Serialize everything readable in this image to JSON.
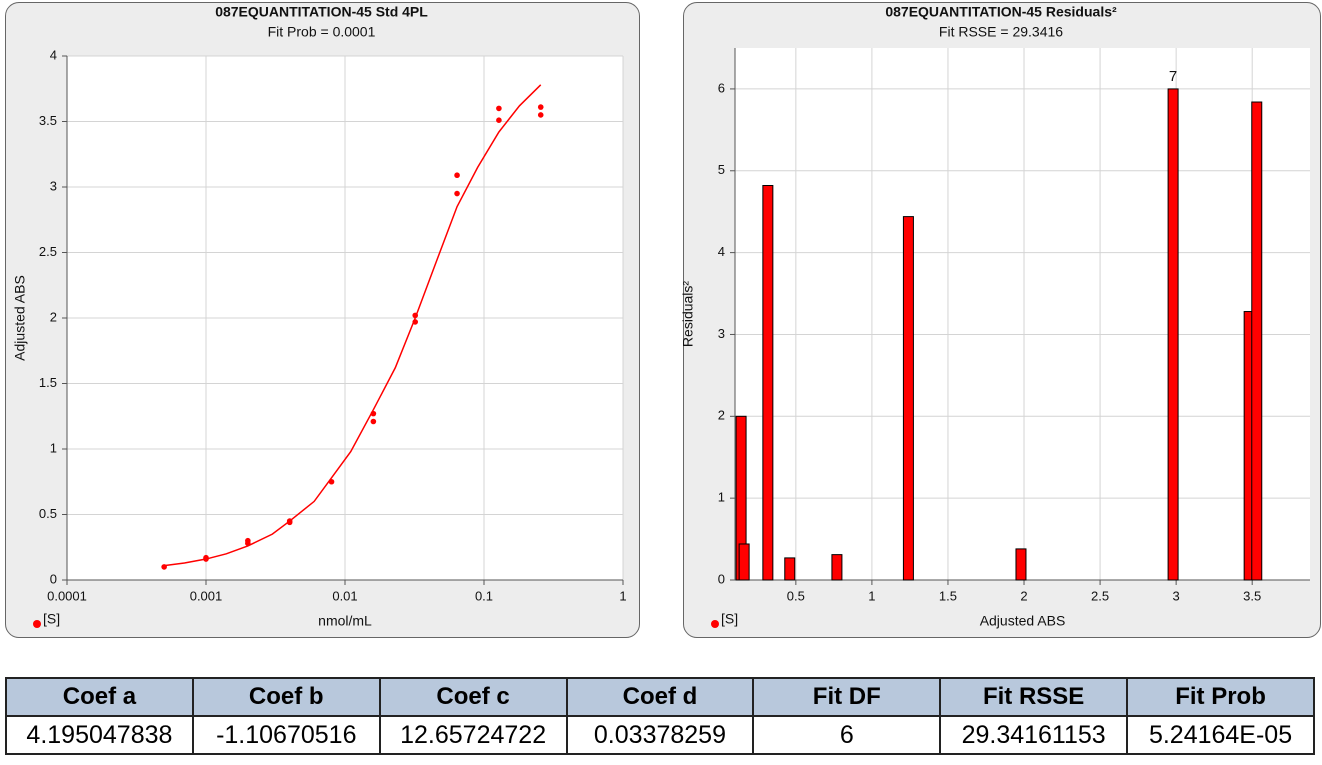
{
  "chart_data": [
    {
      "type": "scatter",
      "title": "087EQUANTITATION-45  Std 4PL",
      "subtitle": "Fit Prob = 0.0001",
      "xlabel": "nmol/mL",
      "ylabel": "Adjusted ABS",
      "xscale": "log",
      "xlim": [
        0.0001,
        1
      ],
      "xticks": [
        0.0001,
        0.001,
        0.01,
        0.1,
        1
      ],
      "ylim": [
        0,
        4
      ],
      "yticks": [
        0,
        0.5,
        1,
        1.5,
        2,
        2.5,
        3,
        3.5,
        4
      ],
      "grid": true,
      "legend": "bottom-left",
      "series": [
        {
          "name": "[S]",
          "color": "#ff0000",
          "x": [
            0.0005,
            0.001,
            0.001,
            0.002,
            0.002,
            0.004,
            0.004,
            0.008,
            0.016,
            0.016,
            0.032,
            0.032,
            0.064,
            0.064,
            0.128,
            0.128,
            0.256,
            0.256
          ],
          "values": [
            0.1,
            0.17,
            0.16,
            0.3,
            0.28,
            0.45,
            0.44,
            0.75,
            1.27,
            1.21,
            2.02,
            1.97,
            3.09,
            2.95,
            3.6,
            3.51,
            3.61,
            3.55
          ]
        }
      ],
      "fit": {
        "color": "#ff0000",
        "x": [
          0.0005,
          0.0007,
          0.001,
          0.0014,
          0.002,
          0.003,
          0.004,
          0.006,
          0.008,
          0.011,
          0.016,
          0.023,
          0.032,
          0.045,
          0.064,
          0.09,
          0.128,
          0.18,
          0.256
        ],
        "values": [
          0.11,
          0.13,
          0.16,
          0.2,
          0.26,
          0.35,
          0.45,
          0.6,
          0.78,
          0.98,
          1.3,
          1.62,
          2.0,
          2.42,
          2.85,
          3.15,
          3.42,
          3.62,
          3.78
        ]
      }
    },
    {
      "type": "bar",
      "title": "087EQUANTITATION-45 Residuals²",
      "subtitle": "Fit RSSE = 29.3416",
      "xlabel": "Adjusted ABS",
      "ylabel": "Residuals²",
      "xlim": [
        0.1,
        3.88
      ],
      "xticks": [
        0.5,
        1,
        1.5,
        2,
        2.5,
        3,
        3.5
      ],
      "ylim": [
        0,
        6.5
      ],
      "yticks": [
        0,
        1,
        2,
        3,
        4,
        5,
        6
      ],
      "grid": true,
      "legend": "bottom-left",
      "series": [
        {
          "name": "[S]",
          "color": "#ff0000",
          "x": [
            0.14,
            0.16,
            0.316,
            0.46,
            0.77,
            1.24,
            1.98,
            2.98,
            3.48,
            3.53
          ],
          "values": [
            2.0,
            0.44,
            4.82,
            0.27,
            0.31,
            4.44,
            0.38,
            6.0,
            3.28,
            5.84
          ],
          "point_labels": [
            null,
            null,
            null,
            null,
            null,
            null,
            null,
            "7",
            null,
            null
          ]
        }
      ]
    }
  ],
  "table": {
    "header": [
      "Coef a",
      "Coef b",
      "Coef c",
      "Coef d",
      "Fit DF",
      "Fit RSSE",
      "Fit Prob"
    ],
    "rows": [
      [
        "4.195047838",
        "-1.10670516",
        "12.65724722",
        "0.03378259",
        "6",
        "29.34161153",
        "5.24164E-05"
      ]
    ]
  }
}
